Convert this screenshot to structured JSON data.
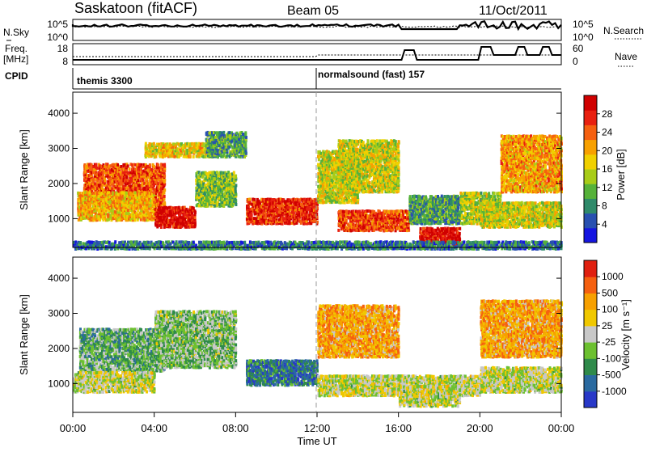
{
  "header": {
    "station": "Saskatoon (fitACF)",
    "beam": "Beam 05",
    "date": "11/Oct/2011"
  },
  "strip": {
    "nsky_label": "N.Sky",
    "nsky_ticks": [
      "10^5",
      "10^0"
    ],
    "nsearch_label": "N.Search",
    "nsearch_ticks": [
      "10^5",
      "10^0"
    ],
    "freq_label": "Freq.",
    "freq_unit": "[MHz]",
    "freq_ticks": [
      "18",
      "8"
    ],
    "nave_label": "Nave",
    "nave_ticks": [
      "60",
      "0"
    ],
    "cpid_label": "CPID",
    "cpid_segments": [
      {
        "name": "themis 3300",
        "start_hour": 0
      },
      {
        "name": "normalsound (fast) 157",
        "start_hour": 12
      }
    ]
  },
  "chart_data": [
    {
      "type": "heatmap",
      "panel": "power",
      "xlabel": "",
      "ylabel": "Slant Range [km]",
      "xlim": [
        0,
        24
      ],
      "ylim": [
        180,
        4600
      ],
      "yticks": [
        1000,
        2000,
        3000,
        4000
      ],
      "colorbar": {
        "label": "Power [dB]",
        "ticks": [
          "4",
          "8",
          "12",
          "16",
          "20",
          "24",
          "28"
        ],
        "colors": [
          "#1515e0",
          "#2850b0",
          "#2f8a6a",
          "#56b23a",
          "#a8cc18",
          "#f0d000",
          "#f7a000",
          "#f56010",
          "#e82010",
          "#d00000"
        ]
      },
      "regions": [
        {
          "x": [
            0.5,
            4.5
          ],
          "y": [
            1400,
            2600
          ],
          "level": 0.78
        },
        {
          "x": [
            0.2,
            4.0
          ],
          "y": [
            1000,
            1800
          ],
          "level": 0.62
        },
        {
          "x": [
            3.5,
            7.0
          ],
          "y": [
            2800,
            3200
          ],
          "level": 0.55
        },
        {
          "x": [
            4.0,
            6.0
          ],
          "y": [
            800,
            1400
          ],
          "level": 0.92
        },
        {
          "x": [
            6.0,
            8.0
          ],
          "y": [
            1400,
            2400
          ],
          "level": 0.4
        },
        {
          "x": [
            6.5,
            8.5
          ],
          "y": [
            2800,
            3500
          ],
          "level": 0.3
        },
        {
          "x": [
            8.5,
            12.0
          ],
          "y": [
            900,
            1600
          ],
          "level": 0.85
        },
        {
          "x": [
            12.0,
            14.0
          ],
          "y": [
            1500,
            3000
          ],
          "level": 0.5
        },
        {
          "x": [
            13.0,
            16.5
          ],
          "y": [
            700,
            1300
          ],
          "level": 0.8
        },
        {
          "x": [
            13.0,
            16.0
          ],
          "y": [
            1800,
            3300
          ],
          "level": 0.5
        },
        {
          "x": [
            16.5,
            19.0
          ],
          "y": [
            900,
            1700
          ],
          "level": 0.3
        },
        {
          "x": [
            17.0,
            19.0
          ],
          "y": [
            300,
            800
          ],
          "level": 0.92
        },
        {
          "x": [
            19.0,
            21.0
          ],
          "y": [
            900,
            1800
          ],
          "level": 0.45
        },
        {
          "x": [
            21.0,
            24.0
          ],
          "y": [
            1800,
            3400
          ],
          "level": 0.65
        },
        {
          "x": [
            20.0,
            24.0
          ],
          "y": [
            800,
            1500
          ],
          "level": 0.5
        },
        {
          "x": [
            0.0,
            24.0
          ],
          "y": [
            180,
            400
          ],
          "level": 0.22
        }
      ]
    },
    {
      "type": "heatmap",
      "panel": "velocity",
      "xlabel": "Time UT",
      "ylabel": "Slant Range [km]",
      "xlim": [
        0,
        24
      ],
      "ylim": [
        180,
        4600
      ],
      "xticks": [
        "00:00",
        "04:00",
        "08:00",
        "12:00",
        "16:00",
        "20:00",
        "00:00"
      ],
      "yticks": [
        1000,
        2000,
        3000,
        4000
      ],
      "colorbar": {
        "label": "Velocity [m s⁻¹]",
        "ticks": [
          "1000",
          "500",
          "100",
          "25",
          "-25",
          "-100",
          "-500",
          "-1000"
        ],
        "colors": [
          "#2838c8",
          "#2a6aa0",
          "#2f8a4a",
          "#6cc030",
          "#c8c8c8",
          "#f0c800",
          "#f7a000",
          "#f56010",
          "#e02010"
        ]
      },
      "regions": [
        {
          "x": [
            0.3,
            4.5
          ],
          "y": [
            1400,
            2600
          ],
          "level": 0.35
        },
        {
          "x": [
            0.0,
            4.0
          ],
          "y": [
            800,
            1400
          ],
          "level": 0.5
        },
        {
          "x": [
            4.0,
            8.0
          ],
          "y": [
            1500,
            3100
          ],
          "level": 0.4
        },
        {
          "x": [
            8.5,
            12.0
          ],
          "y": [
            1000,
            1700
          ],
          "level": 0.2
        },
        {
          "x": [
            12.0,
            16.0
          ],
          "y": [
            1800,
            3300
          ],
          "level": 0.7
        },
        {
          "x": [
            12.0,
            20.0
          ],
          "y": [
            700,
            1300
          ],
          "level": 0.5
        },
        {
          "x": [
            16.0,
            19.0
          ],
          "y": [
            400,
            1000
          ],
          "level": 0.5
        },
        {
          "x": [
            20.0,
            24.0
          ],
          "y": [
            1800,
            3400
          ],
          "level": 0.7
        },
        {
          "x": [
            20.0,
            24.0
          ],
          "y": [
            800,
            1500
          ],
          "level": 0.5
        }
      ]
    }
  ]
}
